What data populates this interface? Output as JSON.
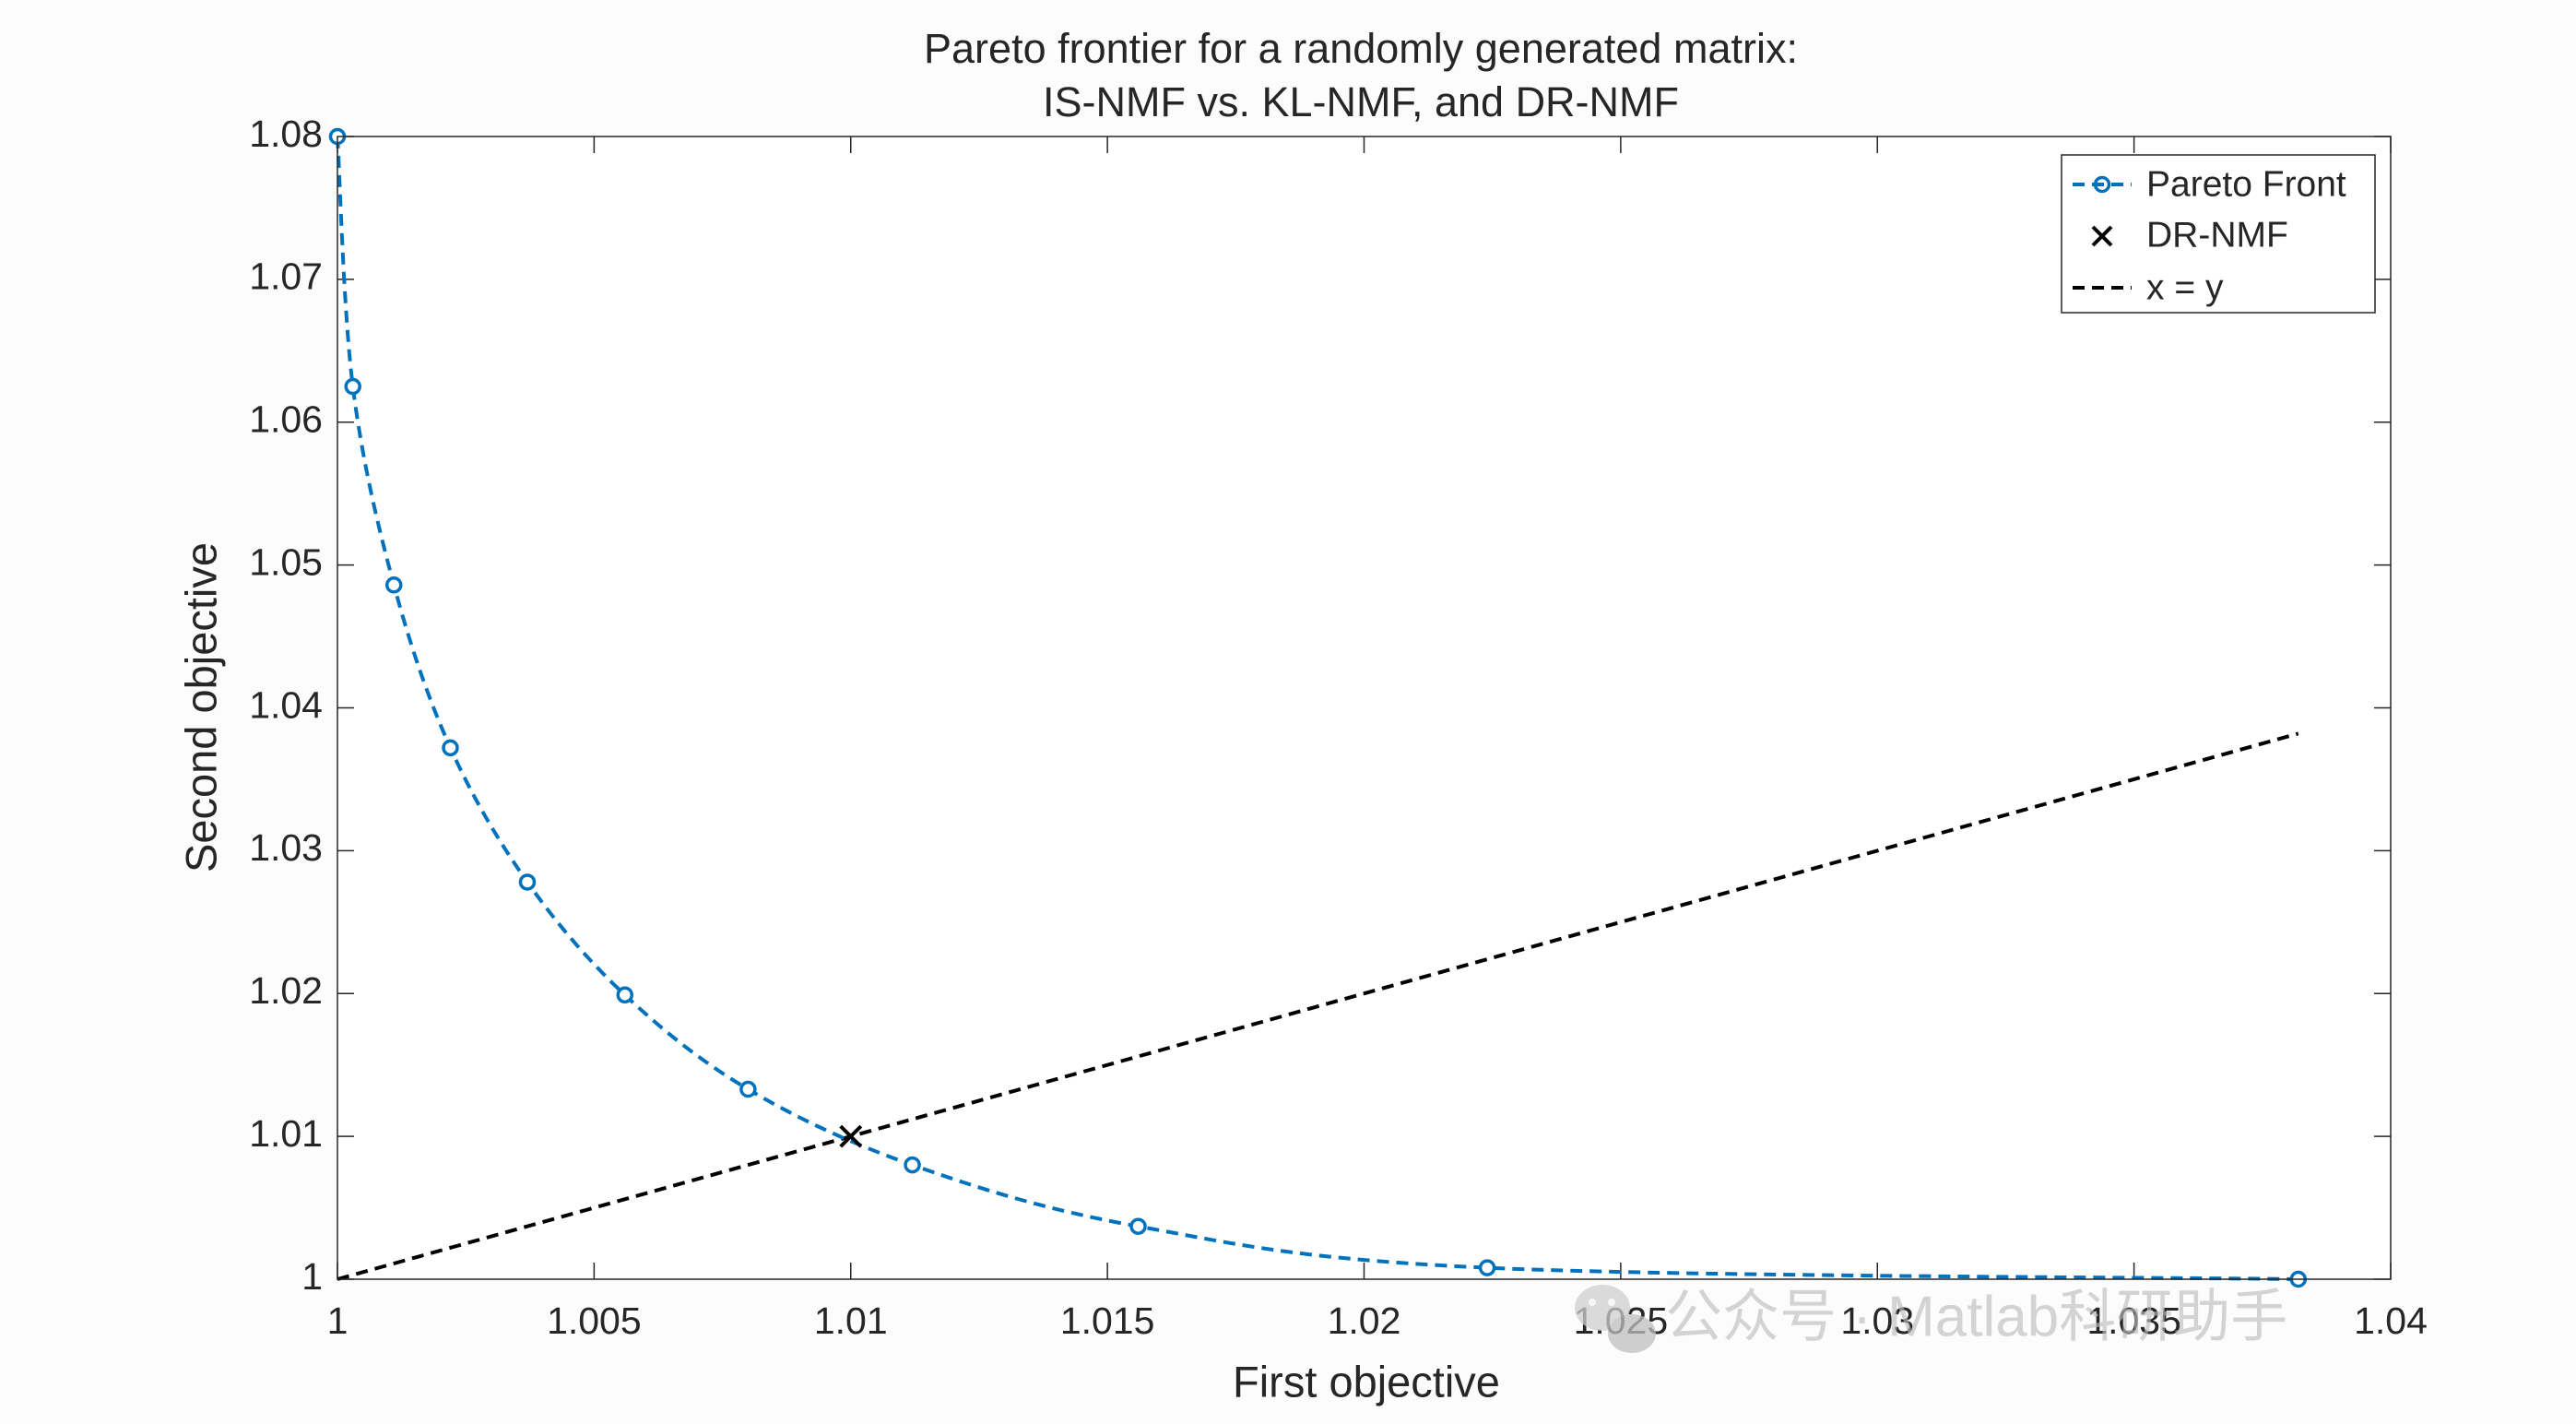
{
  "chart_data": {
    "type": "line",
    "title": [
      "Pareto frontier for a randomly generated matrix:",
      "IS-NMF vs. KL-NMF, and DR-NMF"
    ],
    "xlabel": "First objective",
    "ylabel": "Second objective",
    "xlim": [
      1,
      1.04
    ],
    "ylim": [
      1,
      1.08
    ],
    "xticks": [
      1,
      1.005,
      1.01,
      1.015,
      1.02,
      1.025,
      1.03,
      1.035,
      1.04
    ],
    "xtick_labels": [
      "1",
      "1.005",
      "1.01",
      "1.015",
      "1.02",
      "1.025",
      "1.03",
      "1.035",
      "1.04"
    ],
    "yticks": [
      1,
      1.01,
      1.02,
      1.03,
      1.04,
      1.05,
      1.06,
      1.07,
      1.08
    ],
    "ytick_labels": [
      "1",
      "1.01",
      "1.02",
      "1.03",
      "1.04",
      "1.05",
      "1.06",
      "1.07",
      "1.08"
    ],
    "grid": false,
    "legend_position": "top-right",
    "series": [
      {
        "name": "Pareto Front",
        "style": "dashed-circle-markers",
        "color": "#0072BD",
        "x": [
          1.0,
          1.0003,
          1.0011,
          1.0022,
          1.0037,
          1.0056,
          1.008,
          1.0112,
          1.0156,
          1.0224,
          1.0382
        ],
        "y": [
          1.08,
          1.0625,
          1.0486,
          1.0372,
          1.0278,
          1.0199,
          1.0133,
          1.008,
          1.0037,
          1.0008,
          1.0
        ]
      },
      {
        "name": "DR-NMF",
        "style": "x-marker",
        "color": "#000000",
        "x": [
          1.01
        ],
        "y": [
          1.01
        ]
      },
      {
        "name": "x = y",
        "style": "dashed",
        "color": "#000000",
        "x": [
          1.0,
          1.0382
        ],
        "y": [
          1.0,
          1.0382
        ]
      }
    ]
  },
  "watermark": {
    "text": "公众号 · Matlab科研助手",
    "icon": "wechat-icon"
  }
}
